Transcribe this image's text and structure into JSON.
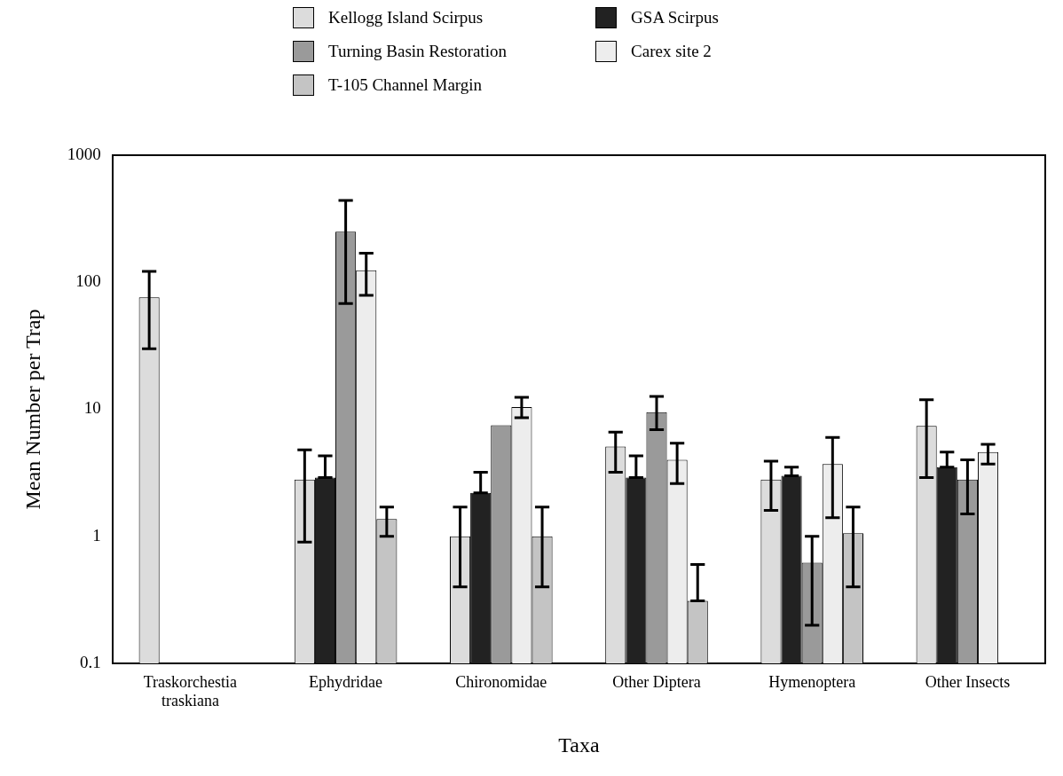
{
  "chart_data": {
    "type": "bar",
    "xlabel": "Taxa",
    "ylabel": "Mean Number per Trap",
    "categories": [
      "Traskorchestia traskiana",
      "Ephydridae",
      "Chironomidae",
      "Other Diptera",
      "Hymenoptera",
      "Other Insects"
    ],
    "log": "y",
    "ylim": [
      0.1,
      1000
    ],
    "yticks": [
      0.1,
      1,
      10,
      100,
      1000
    ],
    "grid": false,
    "legend": "top",
    "series": [
      {
        "name": "Kellogg Island Scirpus",
        "color": "#dcdcdc",
        "values": [
          76,
          2.8,
          1.0,
          5.1,
          2.8,
          7.4
        ],
        "errors": [
          [
            30,
            122
          ],
          [
            0.9,
            4.8
          ],
          [
            0.4,
            1.7
          ],
          [
            3.2,
            6.6
          ],
          [
            1.6,
            3.9
          ],
          [
            2.9,
            11.9
          ]
        ]
      },
      {
        "name": "GSA Scirpus",
        "color": "#222222",
        "values": [
          null,
          2.9,
          2.2,
          2.9,
          3.0,
          3.5
        ],
        "errors": [
          null,
          [
            2.9,
            4.3
          ],
          [
            2.2,
            3.2
          ],
          [
            2.9,
            4.3
          ],
          [
            3.0,
            3.5
          ],
          [
            3.5,
            4.6
          ]
        ]
      },
      {
        "name": "Turning Basin Restoration",
        "color": "#9a9a9a",
        "values": [
          null,
          250,
          7.5,
          9.5,
          0.62,
          2.8
        ],
        "errors": [
          null,
          [
            68,
            440
          ],
          null,
          [
            6.9,
            12.6
          ],
          [
            0.2,
            1.0
          ],
          [
            1.5,
            4.0
          ]
        ]
      },
      {
        "name": "Carex site 2",
        "color": "#ededed",
        "values": [
          null,
          124,
          10.4,
          4.0,
          3.7,
          4.6
        ],
        "errors": [
          null,
          [
            79,
            169
          ],
          [
            8.6,
            12.4
          ],
          [
            2.6,
            5.4
          ],
          [
            1.4,
            6.0
          ],
          [
            3.7,
            5.3
          ]
        ]
      },
      {
        "name": "T-105 Channel Margin",
        "color": "#c4c4c4",
        "values": [
          null,
          1.37,
          1.0,
          0.31,
          1.06,
          null
        ],
        "errors": [
          null,
          [
            1.0,
            1.7
          ],
          [
            0.4,
            1.7
          ],
          [
            0.31,
            0.6
          ],
          [
            0.4,
            1.7
          ],
          null
        ]
      }
    ]
  }
}
